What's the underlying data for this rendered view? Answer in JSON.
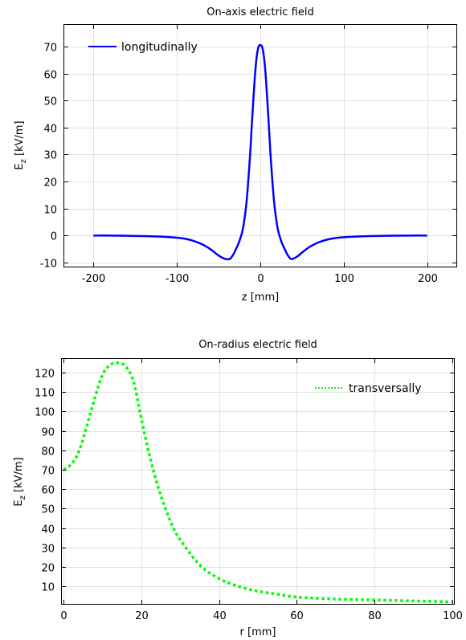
{
  "chart_data": [
    {
      "type": "line",
      "title": "On-axis electric field",
      "xlabel": "z [mm]",
      "ylabel": "E",
      "ylabel_sub": "z",
      "ylabel_unit": "[kV/m]",
      "xlim": [
        -235,
        235
      ],
      "ylim": [
        -11.5,
        78
      ],
      "xticks": [
        -200,
        -100,
        0,
        100,
        200
      ],
      "yticks": [
        -10,
        0,
        10,
        20,
        30,
        40,
        50,
        60,
        70
      ],
      "grid": true,
      "legend_position": "top-left",
      "series": [
        {
          "name": "longitudinally",
          "color": "#0000ff",
          "style": "solid",
          "x": [
            -200,
            -180,
            -160,
            -140,
            -120,
            -100,
            -90,
            -80,
            -70,
            -60,
            -55,
            -50,
            -45,
            -40,
            -37,
            -35,
            -32,
            -30,
            -27,
            -25,
            -22,
            -20,
            -17,
            -15,
            -12,
            -10,
            -8,
            -6,
            -4,
            -2,
            0,
            2,
            4,
            6,
            8,
            10,
            12,
            15,
            17,
            20,
            22,
            25,
            27,
            30,
            32,
            35,
            37,
            40,
            45,
            50,
            55,
            60,
            70,
            80,
            90,
            100,
            120,
            140,
            160,
            180,
            200
          ],
          "y": [
            0,
            0,
            -0.1,
            -0.2,
            -0.4,
            -0.8,
            -1.2,
            -2,
            -3.2,
            -5,
            -6.2,
            -7.4,
            -8.3,
            -8.8,
            -8.7,
            -8.2,
            -6.8,
            -5.5,
            -3.6,
            -2,
            1,
            4,
            11,
            18,
            31,
            42,
            52,
            61,
            67,
            70,
            70.5,
            70,
            67,
            61,
            52,
            42,
            31,
            18,
            11,
            4,
            1,
            -2,
            -3.6,
            -5.5,
            -6.8,
            -8.2,
            -8.7,
            -8.5,
            -7.6,
            -6.3,
            -5.1,
            -4,
            -2.5,
            -1.5,
            -0.9,
            -0.6,
            -0.3,
            -0.15,
            -0.05,
            0,
            0
          ]
        }
      ]
    },
    {
      "type": "line",
      "title": "On-radius electric field",
      "xlabel": "r [mm]",
      "ylabel": "E",
      "ylabel_sub": "z",
      "ylabel_unit": "[kV/m]",
      "xlim": [
        -0.5,
        100.5
      ],
      "ylim": [
        1,
        127
      ],
      "xticks": [
        0,
        20,
        40,
        60,
        80,
        100
      ],
      "yticks": [
        10,
        20,
        30,
        40,
        50,
        60,
        70,
        80,
        90,
        100,
        110,
        120
      ],
      "grid": true,
      "legend_position": "top-right",
      "series": [
        {
          "name": "transversally",
          "color": "#00ff00",
          "style": "dotted",
          "x": [
            0,
            2,
            4,
            6,
            8,
            10,
            12,
            14,
            16,
            18,
            20,
            22,
            24,
            26,
            28,
            30,
            35,
            40,
            45,
            50,
            55,
            60,
            70,
            80,
            90,
            100
          ],
          "y": [
            70,
            73,
            80,
            93,
            107,
            119,
            124,
            125,
            123,
            115,
            96,
            78,
            63,
            51,
            41,
            34,
            21,
            14,
            10,
            7.5,
            6,
            4.5,
            3.5,
            3,
            2.5,
            2
          ]
        }
      ]
    }
  ]
}
